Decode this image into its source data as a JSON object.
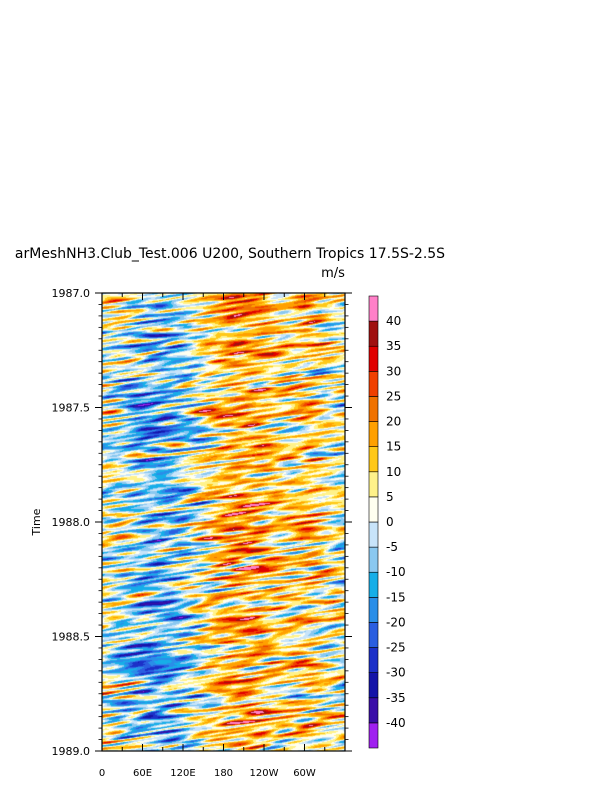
{
  "chart_data": {
    "type": "heatmap",
    "title": "arMeshNH3.Club_Test.006 U200, Southern Tropics 17.5S-2.5S",
    "units": "m/s",
    "ylabel": "Time",
    "xlabel": "",
    "x_ticks": [
      {
        "lon": 0,
        "label": "0"
      },
      {
        "lon": 60,
        "label": "60E"
      },
      {
        "lon": 120,
        "label": "120E"
      },
      {
        "lon": 180,
        "label": "180"
      },
      {
        "lon": 240,
        "label": "120W"
      },
      {
        "lon": 300,
        "label": "60W"
      }
    ],
    "y_ticks": [
      {
        "t": 1987.0,
        "label": "1987.0"
      },
      {
        "t": 1987.5,
        "label": "1987.5"
      },
      {
        "t": 1988.0,
        "label": "1988.0"
      },
      {
        "t": 1988.5,
        "label": "1988.5"
      },
      {
        "t": 1989.0,
        "label": "1989.0"
      }
    ],
    "xlim": [
      0,
      360
    ],
    "ylim": [
      1987.0,
      1989.0
    ],
    "y_reversed": true,
    "colorbar": {
      "levels": [
        -40,
        -35,
        -30,
        -25,
        -20,
        -15,
        -10,
        -5,
        0,
        5,
        10,
        15,
        20,
        25,
        30,
        35,
        40
      ],
      "labels": [
        "-40",
        "-35",
        "-30",
        "-25",
        "-20",
        "-15",
        "-10",
        "-5",
        "0",
        "5",
        "10",
        "15",
        "20",
        "25",
        "30",
        "35",
        "40"
      ],
      "colors": [
        "#a020f0",
        "#3a0ea8",
        "#1414a8",
        "#1c30c8",
        "#2a5ee0",
        "#2a8ee8",
        "#16aee8",
        "#8ac8f0",
        "#c8e4fa",
        "#fffff0",
        "#fff28a",
        "#ffc818",
        "#ffa000",
        "#f07200",
        "#f04000",
        "#e00000",
        "#a01010",
        "#ff80c8"
      ]
    }
  }
}
